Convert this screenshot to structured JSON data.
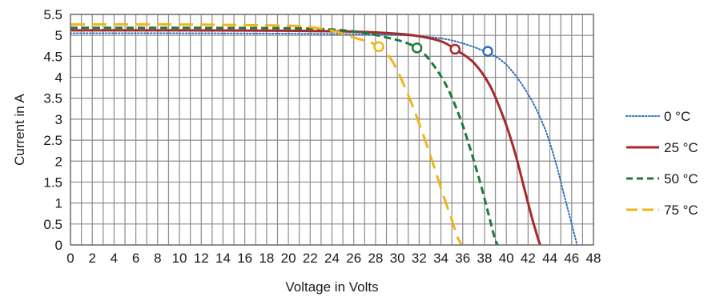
{
  "chart_data": {
    "type": "line",
    "title": "",
    "xlabel": "Voltage in Volts",
    "ylabel": "Current in A",
    "xlim": [
      0,
      48
    ],
    "ylim": [
      0,
      5.5
    ],
    "xticks": [
      "0",
      "2",
      "4",
      "6",
      "8",
      "10",
      "12",
      "14",
      "16",
      "18",
      "20",
      "22",
      "24",
      "26",
      "28",
      "30",
      "32",
      "34",
      "36",
      "38",
      "40",
      "42",
      "44",
      "46",
      "48"
    ],
    "yticks": [
      "0",
      "0.5",
      "1",
      "1.5",
      "2",
      "2.5",
      "3",
      "3.5",
      "4",
      "4.5",
      "5",
      "5.5"
    ],
    "grid": true,
    "legend_position": "right",
    "series": [
      {
        "name": "0 °C",
        "color": "#2f6fbf",
        "dash": "dotted",
        "x": [
          0,
          10,
          20,
          28,
          32,
          35,
          38,
          40,
          42,
          43.5,
          44.5,
          45.3,
          46,
          46.5
        ],
        "y": [
          5.05,
          5.05,
          5.04,
          5.02,
          4.98,
          4.88,
          4.62,
          4.3,
          3.6,
          2.8,
          2.0,
          1.2,
          0.5,
          0
        ],
        "mpp": {
          "x": 38.3,
          "y": 4.62
        }
      },
      {
        "name": "25 °C",
        "color": "#a62a2a",
        "dash": "solid",
        "x": [
          0,
          10,
          20,
          26,
          30,
          32,
          34,
          35.3,
          37,
          38.5,
          39.8,
          40.8,
          41.6,
          42.3,
          42.8,
          43.1
        ],
        "y": [
          5.12,
          5.12,
          5.11,
          5.09,
          5.04,
          4.98,
          4.86,
          4.67,
          4.35,
          3.8,
          3.0,
          2.2,
          1.4,
          0.7,
          0.25,
          0
        ],
        "mpp": {
          "x": 35.3,
          "y": 4.67
        }
      },
      {
        "name": "50 °C",
        "color": "#1f7a3a",
        "dash": "dashed",
        "x": [
          0,
          10,
          20,
          24,
          27,
          29,
          30.5,
          31.8,
          33,
          34.5,
          35.8,
          36.8,
          37.7,
          38.4,
          38.9,
          39.2
        ],
        "y": [
          5.18,
          5.18,
          5.17,
          5.14,
          5.06,
          4.95,
          4.85,
          4.7,
          4.4,
          3.8,
          3.0,
          2.2,
          1.4,
          0.7,
          0.2,
          0
        ],
        "mpp": {
          "x": 31.8,
          "y": 4.7
        }
      },
      {
        "name": "75 °C",
        "color": "#f2b41b",
        "dash": "long-dash",
        "x": [
          0,
          10,
          20,
          22.5,
          24.5,
          26,
          27.3,
          28.3,
          29.5,
          30.8,
          32,
          33.2,
          34.2,
          35,
          35.5,
          35.9
        ],
        "y": [
          5.26,
          5.26,
          5.23,
          5.18,
          5.08,
          4.95,
          4.85,
          4.73,
          4.4,
          3.7,
          2.9,
          2.0,
          1.2,
          0.6,
          0.2,
          0
        ],
        "mpp": {
          "x": 28.3,
          "y": 4.73
        }
      }
    ]
  }
}
